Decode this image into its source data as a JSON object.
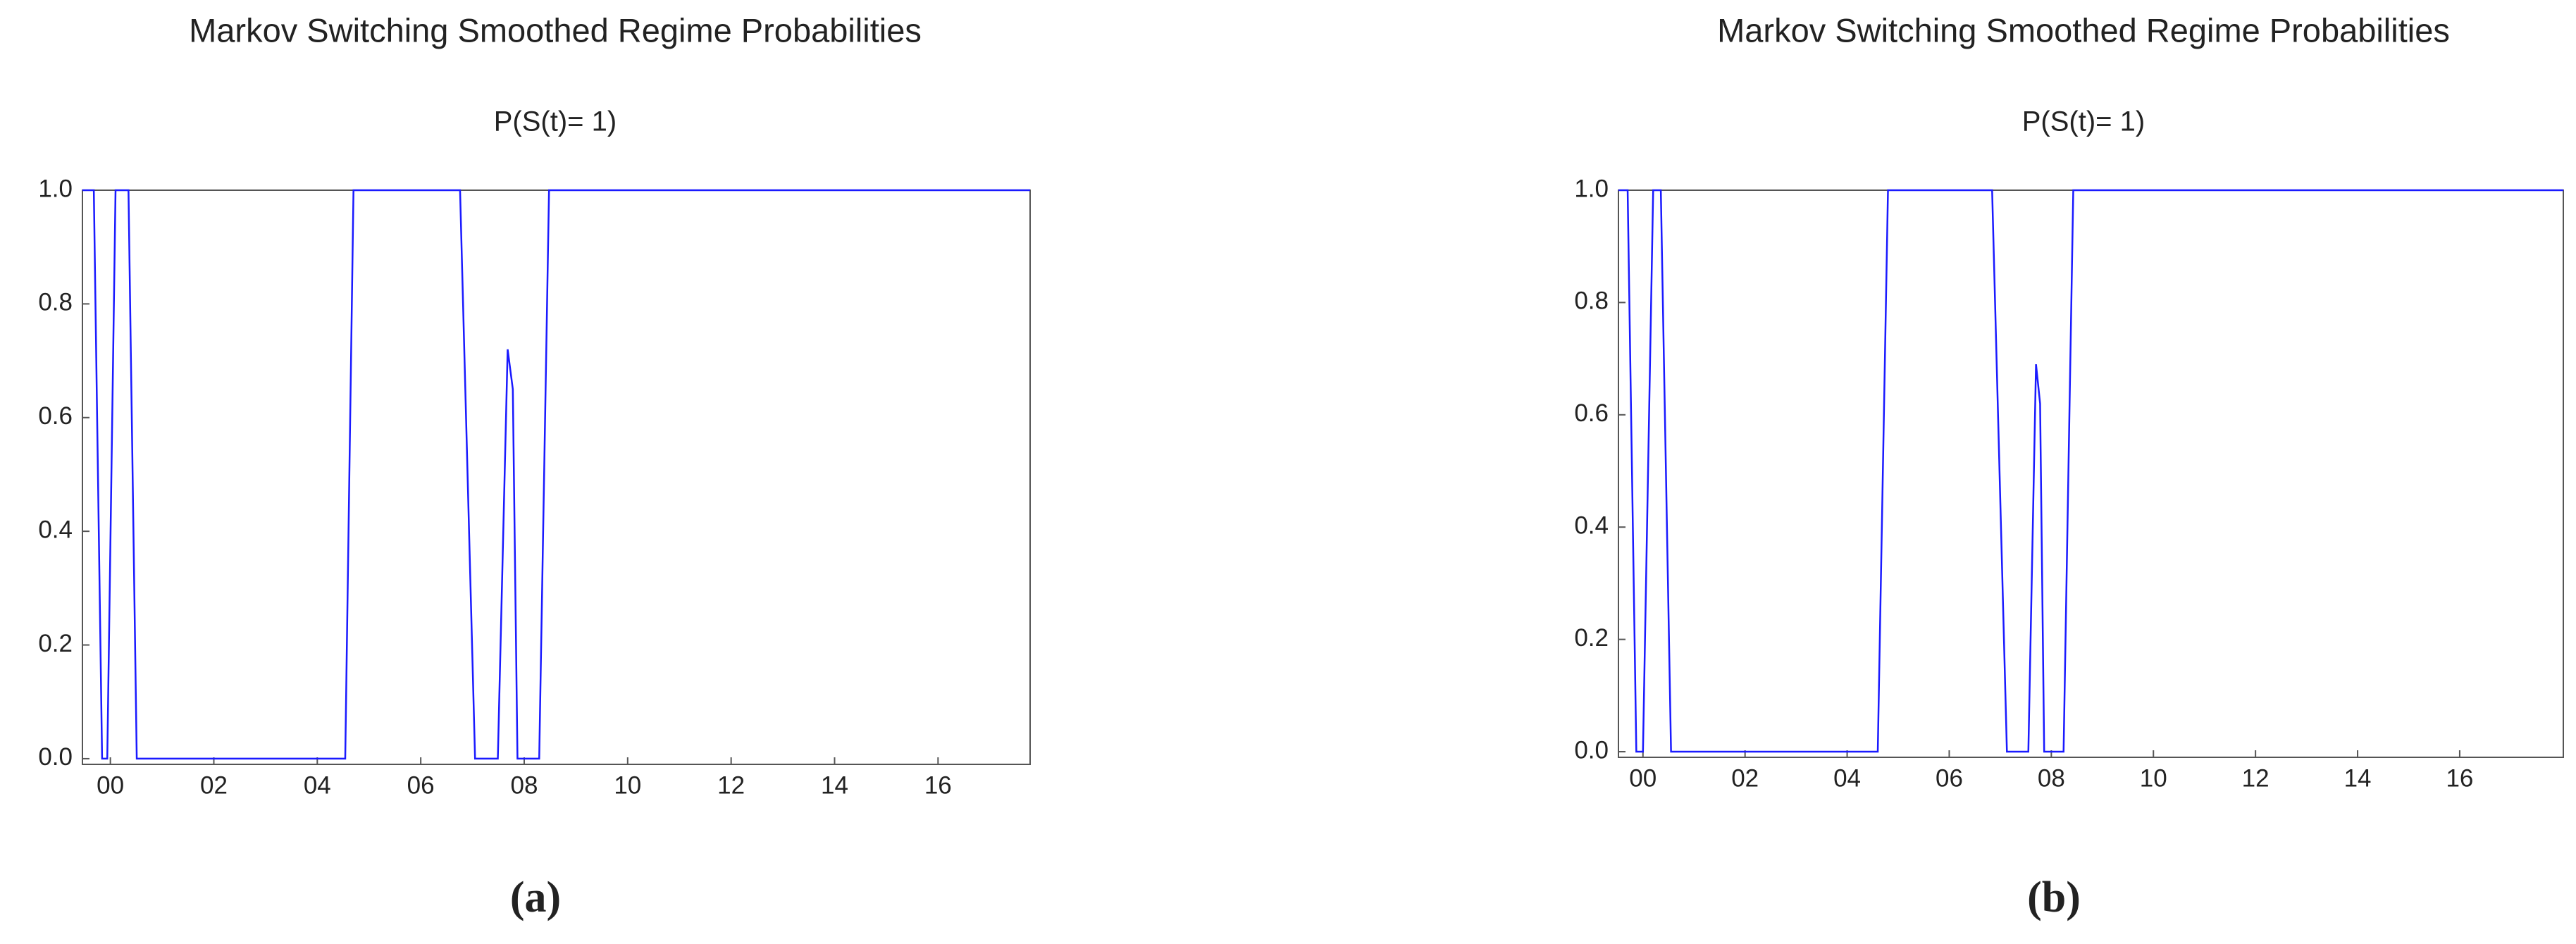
{
  "chart_data": [
    {
      "type": "line",
      "title": "Markov Switching Smoothed Regime Probabilities",
      "subtitle": "P(S(t)= 1)",
      "caption": "(a)",
      "x": [
        1999.46,
        1999.68,
        1999.84,
        1999.94,
        2000.1,
        2000.35,
        2000.51,
        2004.54,
        2004.7,
        2006.76,
        2007.05,
        2007.49,
        2007.68,
        2007.78,
        2007.87,
        2008.29,
        2008.48,
        2017.78
      ],
      "values": [
        1,
        1,
        0,
        0,
        1,
        1,
        0,
        0,
        1,
        1,
        0,
        0,
        0.72,
        0.65,
        0,
        0,
        1,
        1
      ],
      "color": "#1a1aff",
      "xlim": [
        1999.46,
        2017.78
      ],
      "ylim": [
        -0.01,
        1.0
      ],
      "xticks": [
        {
          "value": 2000,
          "label": "00"
        },
        {
          "value": 2002,
          "label": "02"
        },
        {
          "value": 2004,
          "label": "04"
        },
        {
          "value": 2006,
          "label": "06"
        },
        {
          "value": 2008,
          "label": "08"
        },
        {
          "value": 2010,
          "label": "10"
        },
        {
          "value": 2012,
          "label": "12"
        },
        {
          "value": 2014,
          "label": "14"
        },
        {
          "value": 2016,
          "label": "16"
        }
      ],
      "yticks": [
        {
          "value": 0,
          "label": "0.0"
        },
        {
          "value": 0.2,
          "label": "0.2"
        },
        {
          "value": 0.4,
          "label": "0.4"
        },
        {
          "value": 0.6,
          "label": "0.6"
        },
        {
          "value": 0.8,
          "label": "0.8"
        },
        {
          "value": 1,
          "label": "1.0"
        }
      ]
    },
    {
      "type": "line",
      "title": "Markov Switching Smoothed Regime Probabilities",
      "subtitle": "P(S(t)= 1)",
      "caption": "(b)",
      "x": [
        1999.52,
        1999.7,
        1999.87,
        2000.0,
        2000.2,
        2000.35,
        2000.55,
        2004.6,
        2004.8,
        2006.84,
        2007.13,
        2007.55,
        2007.7,
        2007.78,
        2007.86,
        2008.24,
        2008.43,
        2018.03
      ],
      "values": [
        1,
        1,
        0,
        0,
        1,
        1,
        0,
        0,
        1,
        1,
        0,
        0,
        0.69,
        0.62,
        0,
        0,
        1,
        1
      ],
      "color": "#1a1aff",
      "xlim": [
        1999.52,
        2018.03
      ],
      "ylim": [
        -0.01,
        1.0
      ],
      "xticks": [
        {
          "value": 2000,
          "label": "00"
        },
        {
          "value": 2002,
          "label": "02"
        },
        {
          "value": 2004,
          "label": "04"
        },
        {
          "value": 2006,
          "label": "06"
        },
        {
          "value": 2008,
          "label": "08"
        },
        {
          "value": 2010,
          "label": "10"
        },
        {
          "value": 2012,
          "label": "12"
        },
        {
          "value": 2014,
          "label": "14"
        },
        {
          "value": 2016,
          "label": "16"
        }
      ],
      "yticks": [
        {
          "value": 0,
          "label": "0.0"
        },
        {
          "value": 0.2,
          "label": "0.2"
        },
        {
          "value": 0.4,
          "label": "0.4"
        },
        {
          "value": 0.6,
          "label": "0.6"
        },
        {
          "value": 0.8,
          "label": "0.8"
        },
        {
          "value": 1,
          "label": "1.0"
        }
      ]
    }
  ]
}
